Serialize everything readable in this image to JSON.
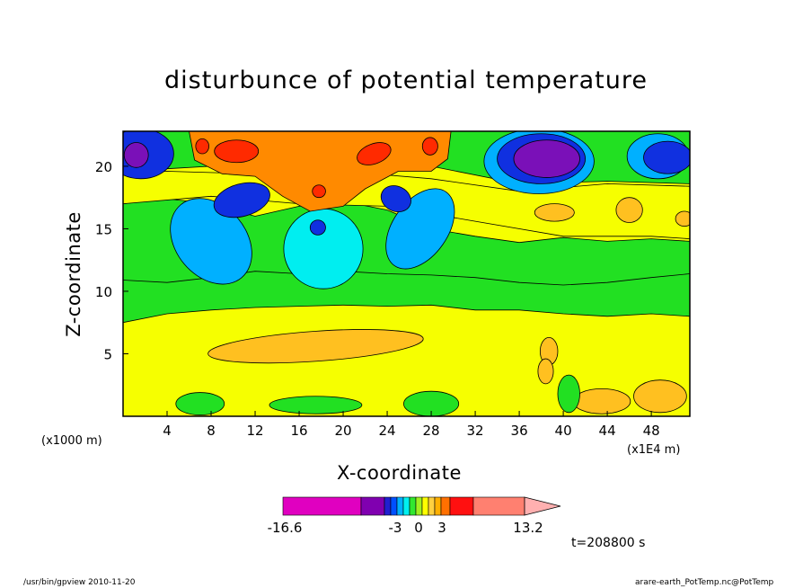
{
  "title": "disturbunce of potential temperature",
  "footer": {
    "left": "/usr/bin/gpview   2010-11-20",
    "right": "arare-earth_PotTemp.nc@PotTemp"
  },
  "time_label": "t=208800 s",
  "chart_data": {
    "type": "heatmap",
    "title": "disturbunce of potential temperature",
    "xlabel": "X-coordinate",
    "ylabel": "Z-coordinate",
    "x_unit_left": "(x1000 m)",
    "x_unit_right": "(x1E4 m)",
    "xlim": [
      0,
      51.5
    ],
    "ylim": [
      0,
      22.8
    ],
    "x_ticks": [
      4,
      8,
      12,
      16,
      20,
      24,
      28,
      32,
      36,
      40,
      44,
      48
    ],
    "y_ticks": [
      5,
      10,
      15,
      20
    ],
    "colorbar": {
      "levels": [
        -16.6,
        -3,
        0,
        3,
        13.2
      ],
      "tick_labels": [
        "-16.6",
        "-3",
        "0",
        "3",
        "13.2"
      ],
      "colors": [
        "#e000c0",
        "#8000b0",
        "#2020d0",
        "#0050ff",
        "#00b0ff",
        "#00f0f0",
        "#30e830",
        "#a0f020",
        "#ffff00",
        "#ffd040",
        "#ffb000",
        "#ff7000",
        "#ff1010",
        "#ff8070",
        "#ffb0b0"
      ]
    },
    "colors": {
      "deep_negative": "#7a10b8",
      "strong_negative": "#1030e0",
      "negative": "#00b0ff",
      "weak_negative": "#00eef0",
      "near_zero": "#22e022",
      "weak_positive": "#f6ff00",
      "positive": "#ffc020",
      "strong_positive": "#ff8a00",
      "max_positive": "#ff2a00"
    }
  }
}
